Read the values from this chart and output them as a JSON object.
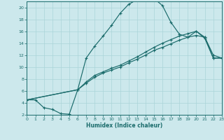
{
  "xlabel": "Humidex (Indice chaleur)",
  "bg_color": "#cce8ec",
  "grid_color": "#aad4d8",
  "line_color": "#1a6b6b",
  "xlim": [
    0,
    23
  ],
  "ylim": [
    2,
    21
  ],
  "xticks": [
    0,
    1,
    2,
    3,
    4,
    5,
    6,
    7,
    8,
    9,
    10,
    11,
    12,
    13,
    14,
    15,
    16,
    17,
    18,
    19,
    20,
    21,
    22,
    23
  ],
  "yticks": [
    2,
    4,
    6,
    8,
    10,
    12,
    14,
    16,
    18,
    20
  ],
  "line1_x": [
    0,
    1,
    2,
    3,
    4,
    5,
    6,
    7,
    8,
    9,
    10,
    11,
    12,
    13,
    14,
    15,
    16,
    17,
    18,
    19,
    20,
    21,
    22,
    23
  ],
  "line1_y": [
    4.5,
    4.5,
    3.2,
    2.9,
    2.2,
    2.1,
    6.2,
    11.5,
    13.5,
    15.2,
    17.0,
    19.0,
    20.5,
    21.3,
    21.5,
    21.5,
    20.3,
    17.5,
    15.5,
    15.0,
    16.0,
    14.8,
    11.5,
    11.5
  ],
  "line2_x": [
    0,
    6,
    7,
    8,
    9,
    10,
    11,
    12,
    13,
    14,
    15,
    16,
    17,
    18,
    19,
    20,
    21,
    22,
    23
  ],
  "line2_y": [
    4.5,
    6.2,
    7.3,
    8.3,
    9.0,
    9.5,
    10.0,
    10.7,
    11.3,
    12.0,
    12.8,
    13.3,
    13.9,
    14.5,
    15.0,
    15.3,
    15.0,
    11.5,
    11.5
  ],
  "line3_x": [
    0,
    6,
    7,
    8,
    9,
    10,
    11,
    12,
    13,
    14,
    15,
    16,
    17,
    18,
    19,
    20,
    21,
    22,
    23
  ],
  "line3_y": [
    4.5,
    6.2,
    7.5,
    8.6,
    9.2,
    9.8,
    10.3,
    11.0,
    11.7,
    12.5,
    13.3,
    14.0,
    14.6,
    15.2,
    15.6,
    16.0,
    15.0,
    12.0,
    11.5
  ]
}
